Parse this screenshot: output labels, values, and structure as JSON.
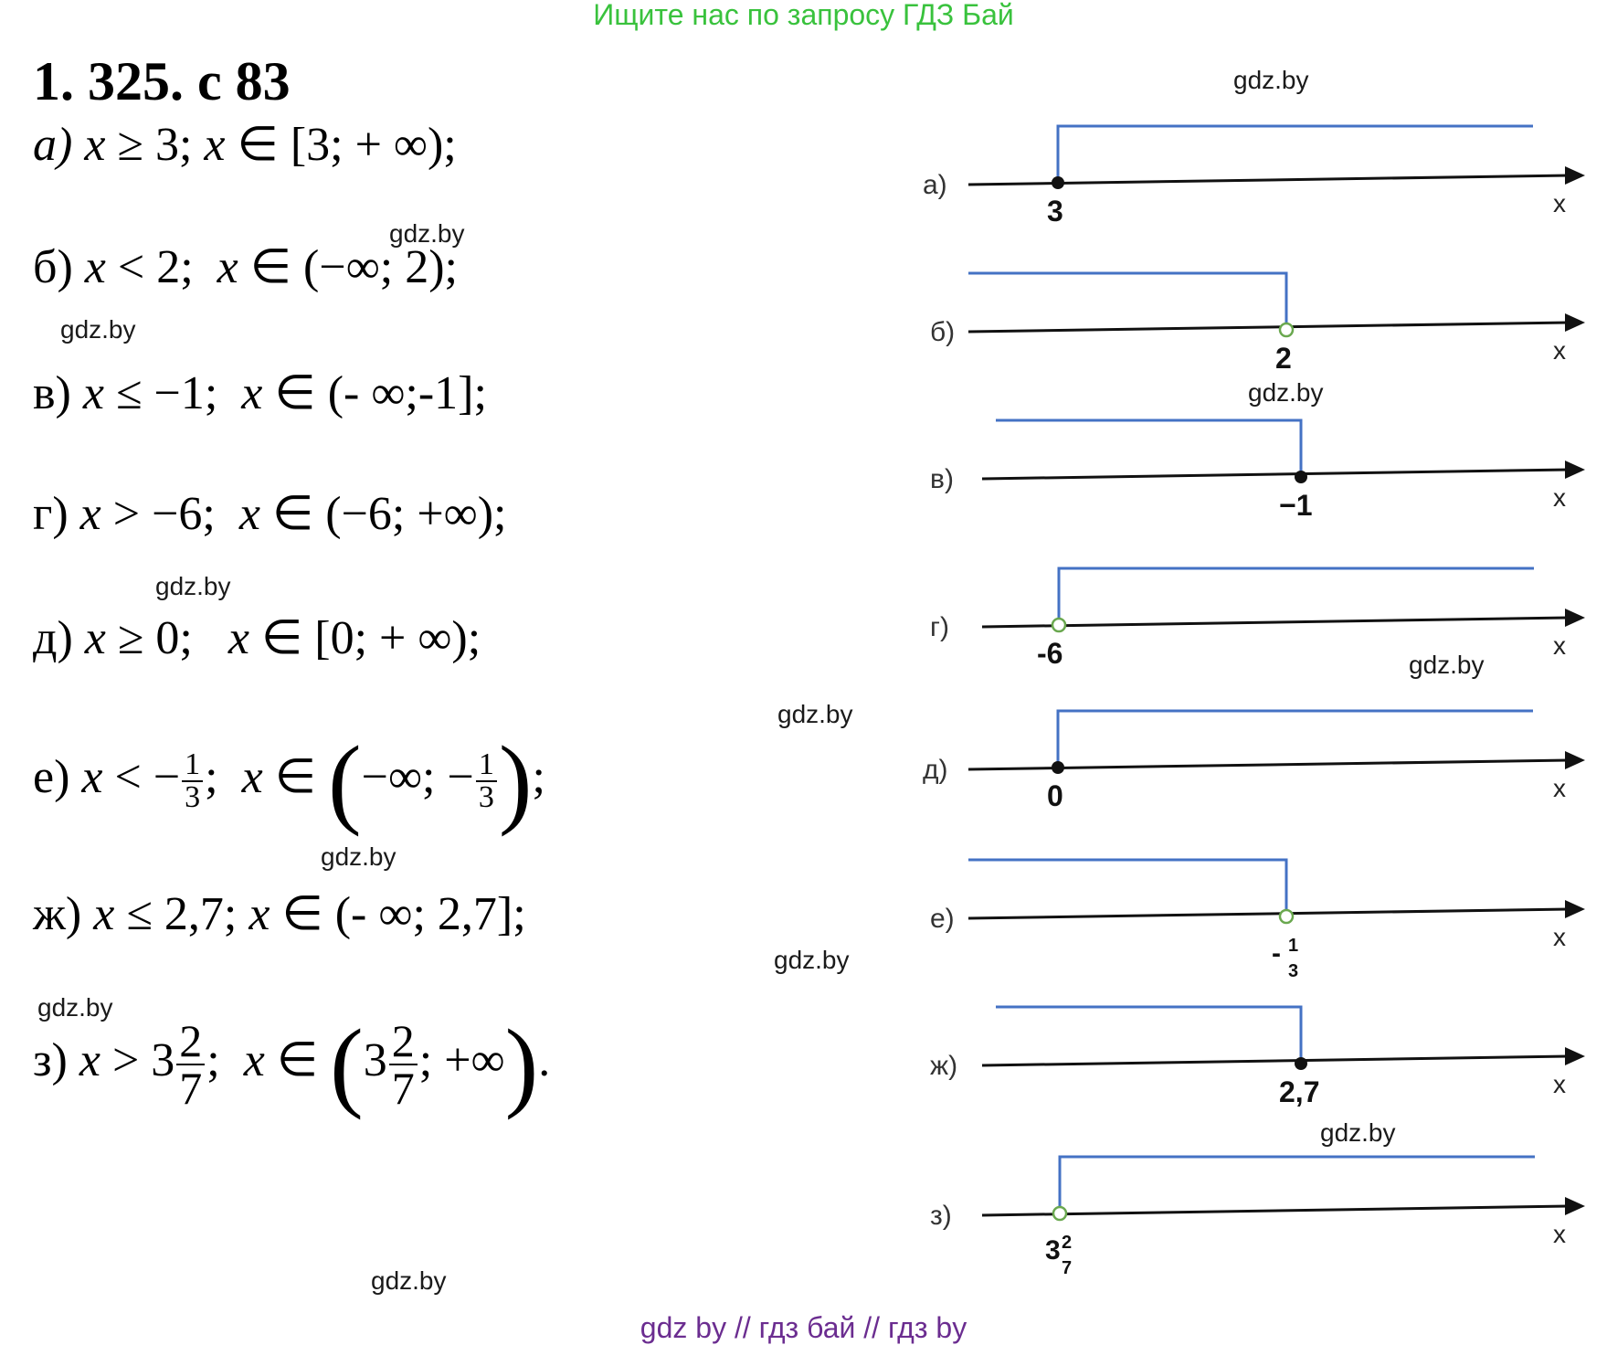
{
  "banner": "Ищите нас по запросу ГДЗ Бай",
  "title": "1. 325. с 83",
  "watermark": "gdz.by",
  "footer": "gdz by  //  гдз бай  //  гдз by",
  "solutions": {
    "a": {
      "label": "а)",
      "ineq_var": "x",
      "ineq_op": "≥",
      "ineq_val": "3;",
      "in": "∈",
      "interval": "[3; + ∞);"
    },
    "b": {
      "label": "б)",
      "ineq_var": "x",
      "ineq_op": "<",
      "ineq_val": "2;",
      "in": "∈",
      "interval": "(−∞; 2);"
    },
    "v": {
      "label": "в)",
      "ineq_var": "x",
      "ineq_op": "≤",
      "ineq_val": "−1;",
      "in": "∈",
      "interval": "(- ∞;-1];"
    },
    "g": {
      "label": "г)",
      "ineq_var": "x",
      "ineq_op": ">",
      "ineq_val": "−6;",
      "in": "∈",
      "interval": "(−6; +∞);"
    },
    "d": {
      "label": "д)",
      "ineq_var": "x",
      "ineq_op": "≥",
      "ineq_val": "0;",
      "in": "∈",
      "interval": "[0; + ∞);"
    },
    "e": {
      "label": "е)",
      "ineq_var": "x",
      "ineq_op": "< −",
      "frac_num": "1",
      "frac_den": "3",
      "sep": ";",
      "in": "∈",
      "int_open": "(",
      "int_mid": "−∞; −",
      "int_close": ")",
      "end": ";"
    },
    "zh": {
      "label": "ж)",
      "ineq_var": "x",
      "ineq_op": "≤",
      "ineq_val": "2,7;",
      "in": "∈",
      "interval": "(- ∞; 2,7];"
    },
    "z": {
      "label": "з)",
      "ineq_var": "x",
      "ineq_op": "> 3",
      "frac_num": "2",
      "frac_den": "7",
      "sep": ";",
      "in": "∈",
      "int_open": "(",
      "int_mid_pre": "3",
      "int_mid_post": "; +∞",
      "int_close": ")",
      "end": "."
    }
  },
  "number_lines": [
    {
      "label": "а)",
      "point": "3",
      "point_filled": true,
      "direction": "right",
      "axis": "x"
    },
    {
      "label": "б)",
      "point": "2",
      "point_filled": false,
      "direction": "left",
      "axis": "x"
    },
    {
      "label": "в)",
      "point": "−1",
      "point_filled": true,
      "direction": "left",
      "axis": "x"
    },
    {
      "label": "г)",
      "point": "-6",
      "point_filled": false,
      "direction": "right",
      "axis": "x"
    },
    {
      "label": "д)",
      "point": "0",
      "point_filled": true,
      "direction": "right",
      "axis": "x"
    },
    {
      "label": "е)",
      "point": "-",
      "point_num": "1",
      "point_den": "3",
      "point_filled": false,
      "direction": "left",
      "axis": "x"
    },
    {
      "label": "ж)",
      "point": "2,7",
      "point_filled": true,
      "direction": "left",
      "axis": "x"
    },
    {
      "label": "з)",
      "point": "3",
      "point_num": "2",
      "point_den": "7",
      "point_filled": false,
      "direction": "right",
      "axis": "x"
    }
  ],
  "colors": {
    "banner": "#39c23d",
    "footer": "#6b2d90",
    "hatch": "#4472c4",
    "open_point": "#6aa84f"
  }
}
